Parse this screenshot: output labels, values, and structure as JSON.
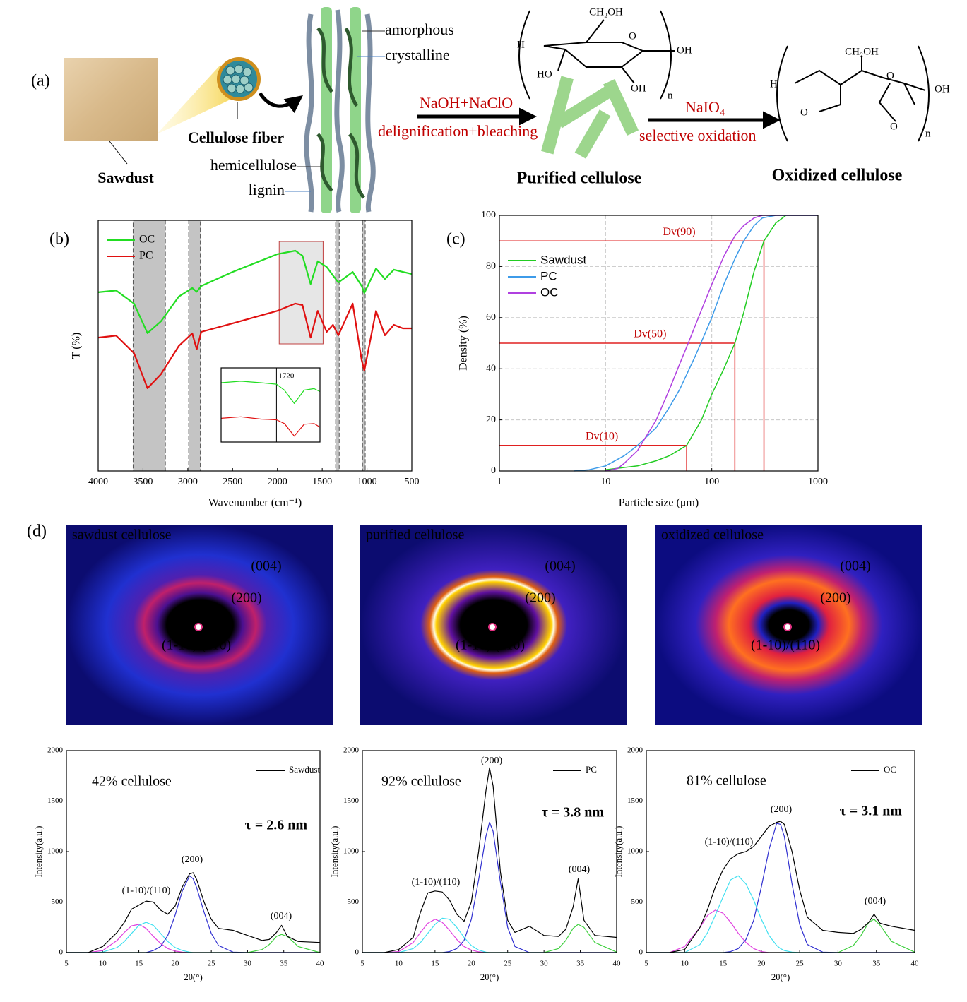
{
  "panel_labels": [
    "(a)",
    "(b)",
    "(c)",
    "(d)"
  ],
  "diagram": {
    "sawdust": "Sawdust",
    "fiber": "Cellulose fiber",
    "hemicellulose": "hemicellulose",
    "lignin": "lignin",
    "amorphous": "amorphous",
    "crystalline": "crystalline",
    "step1_top": "NaOH+NaClO",
    "step1_bottom": "delignification+bleaching",
    "purified": "Purified cellulose",
    "step2_top": "NaIO₄",
    "step2_bottom": "selective oxidation",
    "oxidized": "Oxidized cellulose",
    "chem_purified": [
      "CH₂OH",
      "H",
      "O",
      "OH",
      "HO",
      "OH",
      "n"
    ],
    "chem_oxidized": [
      "CH₂OH",
      "H",
      "O",
      "OH",
      "O",
      "O",
      "n"
    ]
  },
  "diffraction": [
    {
      "title": "sawdust cellulose",
      "peaks": [
        "(004)",
        "(200)",
        "(1-10)/(110)"
      ]
    },
    {
      "title": "purified cellulose",
      "peaks": [
        "(004)",
        "(200)",
        "(1-10)/(110)"
      ]
    },
    {
      "title": "oxidized cellulose",
      "peaks": [
        "(004)",
        "(200)",
        "(1-10)/(110)"
      ]
    }
  ],
  "chart_data": [
    {
      "type": "line",
      "xlabel": "Wavenumber (cm⁻¹)",
      "ylabel": "T (%)",
      "xlim": [
        4000,
        500
      ],
      "xticks": [
        4000,
        3500,
        3000,
        2500,
        2000,
        1500,
        1000,
        500
      ],
      "ylim": [
        0,
        100
      ],
      "legend": "upper left",
      "shaded_regions": [
        [
          3610,
          3250
        ],
        [
          2990,
          2860
        ],
        [
          1350,
          1310
        ],
        [
          1050,
          1020
        ]
      ],
      "highlight_box": [
        1980,
        1490
      ],
      "x": [
        4000,
        3800,
        3600,
        3450,
        3300,
        3100,
        2950,
        2900,
        2850,
        2500,
        2000,
        1800,
        1720,
        1630,
        1550,
        1450,
        1380,
        1320,
        1160,
        1060,
        1030,
        900,
        800,
        700,
        600,
        500
      ],
      "series": [
        {
          "name": "OC",
          "color": "#22dd22",
          "values": [
            71.3,
            72,
            66.8,
            55,
            59.7,
            69.6,
            73,
            71.5,
            73.8,
            79.4,
            86.5,
            87.9,
            85.9,
            74.6,
            83.7,
            81.4,
            78,
            75.2,
            79.4,
            73.8,
            71,
            80.8,
            76.6,
            80.3,
            79.4,
            78.6
          ]
        },
        {
          "name": "PC",
          "color": "#e01010",
          "values": [
            53.2,
            54,
            47,
            33,
            38.6,
            49.9,
            54.9,
            48.5,
            55.5,
            58.9,
            63.9,
            66.8,
            66.2,
            53.2,
            63.9,
            55.5,
            58.3,
            54.1,
            66.8,
            44.2,
            40,
            63.9,
            54.1,
            58.3,
            56.9,
            56.9
          ]
        }
      ]
    },
    {
      "type": "line",
      "xlim": [
        2000,
        1500
      ],
      "ylim": [
        0,
        100
      ],
      "vline": {
        "value": 1720,
        "label": "1720"
      },
      "x": [
        2000,
        1900,
        1800,
        1720,
        1680,
        1630,
        1580,
        1530,
        1500
      ],
      "series": [
        {
          "color": "#22dd22",
          "values": [
            80,
            82,
            80,
            78,
            70,
            52,
            70,
            72,
            68
          ]
        },
        {
          "color": "#e01010",
          "values": [
            32,
            34,
            31,
            30,
            25,
            8,
            24,
            25,
            20
          ]
        }
      ]
    },
    {
      "type": "line",
      "xlabel": "Particle size (μm)",
      "ylabel": "Density (%)",
      "xscale": "log",
      "xlim": [
        1,
        1000
      ],
      "xticks": [
        1,
        10,
        100,
        1000
      ],
      "ylim": [
        0,
        100
      ],
      "yticks": [
        0,
        20,
        40,
        60,
        80,
        100
      ],
      "grid": true,
      "legend": "upper left",
      "reference_lines": [
        {
          "label": "Dv(10)",
          "x": 58,
          "y": 10
        },
        {
          "label": "Dv(50)",
          "x": 165,
          "y": 50
        },
        {
          "label": "Dv(90)",
          "x": 310,
          "y": 90
        }
      ],
      "series": [
        {
          "name": "Sawdust",
          "color": "#22cc22",
          "x": [
            10,
            20,
            30,
            40,
            58,
            80,
            100,
            130,
            165,
            200,
            250,
            310,
            400,
            500,
            1000
          ],
          "values": [
            0.5,
            2,
            4,
            6,
            10,
            20,
            30,
            40,
            50,
            62,
            78,
            90,
            97,
            100,
            100
          ]
        },
        {
          "name": "PC",
          "color": "#3d9be9",
          "x": [
            5,
            7,
            10,
            15,
            20,
            30,
            40,
            50,
            70,
            100,
            130,
            165,
            200,
            250,
            300,
            400,
            1000
          ],
          "values": [
            0,
            0.5,
            2,
            6,
            10,
            17,
            25,
            32,
            45,
            60,
            73,
            83,
            90,
            96,
            99,
            100,
            100
          ]
        },
        {
          "name": "OC",
          "color": "#b040e0",
          "x": [
            10,
            13,
            15,
            20,
            30,
            40,
            50,
            60,
            80,
            100,
            130,
            165,
            200,
            250,
            300,
            1000
          ],
          "values": [
            0,
            1,
            3,
            8,
            20,
            32,
            42,
            50,
            63,
            73,
            84,
            92,
            96,
            99,
            100,
            100
          ]
        }
      ]
    },
    {
      "type": "line",
      "xlabel": "2θ(°)",
      "ylabel": "Intensity(a.u.)",
      "xlim": [
        5,
        40
      ],
      "xticks": [
        5,
        10,
        15,
        20,
        25,
        30,
        35,
        40
      ],
      "ylim": [
        0,
        2000
      ],
      "yticks": [
        0,
        500,
        1000,
        1500,
        2000
      ],
      "legend": "upper right",
      "annotations": [
        "42% cellulose",
        "τ = 2.6 nm",
        "(1-10)/(110)",
        "(200)",
        "(004)"
      ],
      "x": [
        5,
        8,
        10,
        12,
        13,
        14,
        15,
        16,
        17,
        18,
        19,
        20,
        21,
        22,
        22.5,
        23,
        24,
        25,
        26,
        28,
        30,
        32,
        33,
        34,
        34.7,
        35.5,
        37,
        40
      ],
      "series": [
        {
          "color": "#e040e0",
          "values": [
            0,
            0,
            20,
            120,
            200,
            265,
            280,
            240,
            160,
            90,
            40,
            15,
            5,
            0,
            0,
            0,
            0,
            0,
            0,
            0,
            0,
            0,
            0,
            0,
            0,
            0,
            0,
            0
          ]
        },
        {
          "color": "#40e0f0",
          "values": [
            0,
            0,
            5,
            50,
            110,
            190,
            270,
            300,
            270,
            190,
            110,
            50,
            20,
            5,
            0,
            0,
            0,
            0,
            0,
            0,
            0,
            0,
            0,
            0,
            0,
            0,
            0,
            0
          ]
        },
        {
          "color": "#3030d0",
          "values": [
            0,
            0,
            0,
            0,
            0,
            0,
            0,
            0,
            20,
            60,
            170,
            370,
            610,
            760,
            730,
            640,
            400,
            190,
            70,
            5,
            0,
            0,
            0,
            0,
            0,
            0,
            0,
            0
          ]
        },
        {
          "color": "#40d040",
          "values": [
            0,
            0,
            0,
            0,
            0,
            0,
            0,
            0,
            0,
            0,
            0,
            0,
            0,
            0,
            0,
            0,
            0,
            0,
            0,
            0,
            0,
            30,
            80,
            160,
            180,
            160,
            60,
            0
          ]
        },
        {
          "name": "Sawdust",
          "color": "#000000",
          "values": [
            0,
            0,
            60,
            200,
            300,
            430,
            470,
            510,
            500,
            420,
            380,
            460,
            650,
            780,
            790,
            720,
            500,
            330,
            240,
            220,
            170,
            120,
            130,
            200,
            270,
            160,
            110,
            100
          ]
        }
      ]
    },
    {
      "type": "line",
      "xlabel": "2θ(°)",
      "ylabel": "Intensity(a.u.)",
      "xlim": [
        5,
        40
      ],
      "xticks": [
        5,
        10,
        15,
        20,
        25,
        30,
        35,
        40
      ],
      "ylim": [
        0,
        2000
      ],
      "yticks": [
        0,
        500,
        1000,
        1500,
        2000
      ],
      "legend": "upper right",
      "annotations": [
        "92% cellulose",
        "τ = 3.8 nm",
        "(1-10)/(110)",
        "(200)",
        "(004)"
      ],
      "x": [
        5,
        8,
        10,
        12,
        13,
        14,
        15,
        16,
        17,
        18,
        19,
        20,
        21,
        22,
        22.5,
        23,
        24,
        25,
        26,
        28,
        30,
        32,
        33,
        34,
        34.7,
        35.5,
        37,
        40
      ],
      "series": [
        {
          "color": "#e040e0",
          "values": [
            0,
            0,
            10,
            100,
            200,
            290,
            330,
            300,
            220,
            130,
            60,
            25,
            8,
            0,
            0,
            0,
            0,
            0,
            0,
            0,
            0,
            0,
            0,
            0,
            0,
            0,
            0,
            0
          ]
        },
        {
          "color": "#40e0f0",
          "values": [
            0,
            0,
            0,
            40,
            100,
            190,
            280,
            340,
            330,
            250,
            150,
            70,
            25,
            5,
            0,
            0,
            0,
            0,
            0,
            0,
            0,
            0,
            0,
            0,
            0,
            0,
            0,
            0
          ]
        },
        {
          "color": "#3030d0",
          "values": [
            0,
            0,
            0,
            0,
            0,
            0,
            0,
            0,
            10,
            40,
            120,
            330,
            720,
            1150,
            1290,
            1200,
            700,
            250,
            60,
            0,
            0,
            0,
            0,
            0,
            0,
            0,
            0,
            0
          ]
        },
        {
          "color": "#40d040",
          "values": [
            0,
            0,
            0,
            0,
            0,
            0,
            0,
            0,
            0,
            0,
            0,
            0,
            0,
            0,
            0,
            0,
            0,
            0,
            0,
            0,
            0,
            40,
            120,
            240,
            280,
            250,
            100,
            5
          ]
        },
        {
          "name": "PC",
          "color": "#000000",
          "values": [
            0,
            0,
            30,
            150,
            400,
            590,
            610,
            600,
            520,
            380,
            310,
            500,
            1000,
            1600,
            1830,
            1650,
            800,
            320,
            200,
            260,
            170,
            160,
            230,
            450,
            730,
            320,
            170,
            150
          ]
        }
      ]
    },
    {
      "type": "line",
      "xlabel": "2θ(°)",
      "ylabel": "Intensity(a.u.)",
      "xlim": [
        5,
        40
      ],
      "xticks": [
        5,
        10,
        15,
        20,
        25,
        30,
        35,
        40
      ],
      "ylim": [
        0,
        2000
      ],
      "yticks": [
        0,
        500,
        1000,
        1500,
        2000
      ],
      "legend": "upper right",
      "annotations": [
        "81% cellulose",
        "τ = 3.1 nm",
        "(1-10)/(110)",
        "(200)",
        "(004)"
      ],
      "x": [
        5,
        8,
        10,
        12,
        13,
        14,
        15,
        16,
        17,
        18,
        19,
        20,
        21,
        22,
        22.5,
        23,
        24,
        25,
        26,
        28,
        30,
        32,
        33,
        34,
        34.7,
        35.5,
        37,
        40
      ],
      "series": [
        {
          "color": "#e040e0",
          "values": [
            0,
            0,
            60,
            250,
            370,
            420,
            390,
            300,
            190,
            100,
            40,
            10,
            0,
            0,
            0,
            0,
            0,
            0,
            0,
            0,
            0,
            0,
            0,
            0,
            0,
            0,
            0,
            0
          ]
        },
        {
          "color": "#40e0f0",
          "values": [
            0,
            0,
            0,
            80,
            200,
            370,
            550,
            720,
            760,
            680,
            520,
            330,
            170,
            70,
            40,
            20,
            5,
            0,
            0,
            0,
            0,
            0,
            0,
            0,
            0,
            0,
            0,
            0
          ]
        },
        {
          "color": "#3030d0",
          "values": [
            0,
            0,
            0,
            0,
            0,
            0,
            0,
            10,
            40,
            130,
            320,
            650,
            1020,
            1280,
            1270,
            1150,
            680,
            280,
            80,
            5,
            0,
            0,
            0,
            0,
            0,
            0,
            0,
            0
          ]
        },
        {
          "color": "#40d040",
          "values": [
            0,
            0,
            0,
            0,
            0,
            0,
            0,
            0,
            0,
            0,
            0,
            0,
            0,
            0,
            0,
            0,
            0,
            0,
            0,
            0,
            0,
            70,
            170,
            300,
            330,
            270,
            110,
            5
          ]
        },
        {
          "name": "OC",
          "color": "#000000",
          "values": [
            0,
            0,
            30,
            250,
            430,
            650,
            820,
            930,
            980,
            1000,
            1050,
            1150,
            1250,
            1290,
            1300,
            1270,
            1000,
            620,
            350,
            220,
            200,
            190,
            230,
            300,
            380,
            290,
            260,
            220
          ]
        }
      ]
    }
  ]
}
